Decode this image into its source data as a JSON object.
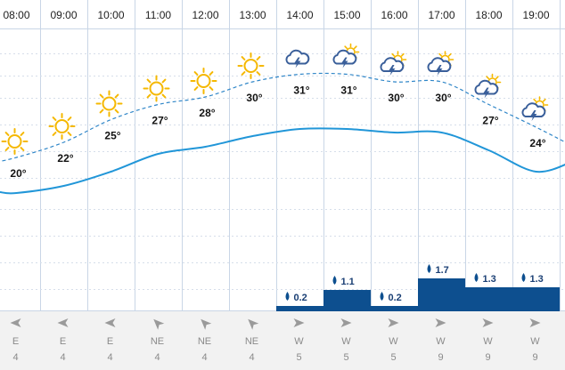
{
  "colors": {
    "grid": "#c9d6e6",
    "gridDash": "#d6deea",
    "curve": "#2196d8",
    "feels": "#2f86c8",
    "precip": "#0d4f8f",
    "sun": "#f5b800",
    "cloud": "#3a5f9a",
    "windArrow": "#9a9a9a",
    "windBand": "#f2f2f2"
  },
  "hours": [
    {
      "time": "08:00",
      "icon": "sun-icon",
      "temp": 20,
      "temp_label": "20°",
      "feels": 20,
      "precip": null,
      "precip_label": "",
      "wind_dir": "E",
      "wind_speed": "4"
    },
    {
      "time": "09:00",
      "icon": "sun-icon",
      "temp": 22,
      "temp_label": "22°",
      "feels": 22,
      "precip": null,
      "precip_label": "",
      "wind_dir": "E",
      "wind_speed": "4"
    },
    {
      "time": "10:00",
      "icon": "sun-icon",
      "temp": 25,
      "temp_label": "25°",
      "feels": 25,
      "precip": null,
      "precip_label": "",
      "wind_dir": "E",
      "wind_speed": "4"
    },
    {
      "time": "11:00",
      "icon": "sun-icon",
      "temp": 27,
      "temp_label": "27°",
      "feels": 27,
      "precip": null,
      "precip_label": "",
      "wind_dir": "NE",
      "wind_speed": "4"
    },
    {
      "time": "12:00",
      "icon": "sun-icon",
      "temp": 28,
      "temp_label": "28°",
      "feels": 28,
      "precip": null,
      "precip_label": "",
      "wind_dir": "NE",
      "wind_speed": "4"
    },
    {
      "time": "13:00",
      "icon": "sun-icon",
      "temp": 30,
      "temp_label": "30°",
      "feels": 30,
      "precip": null,
      "precip_label": "",
      "wind_dir": "NE",
      "wind_speed": "4"
    },
    {
      "time": "14:00",
      "icon": "thunderstorm-icon",
      "temp": 31,
      "temp_label": "31°",
      "feels": 31,
      "precip": 0.2,
      "precip_label": "0.2",
      "wind_dir": "W",
      "wind_speed": "5"
    },
    {
      "time": "15:00",
      "icon": "thunderstorm-sun-icon",
      "temp": 31,
      "temp_label": "31°",
      "feels": 31,
      "precip": 1.1,
      "precip_label": "1.1",
      "wind_dir": "W",
      "wind_speed": "5"
    },
    {
      "time": "16:00",
      "icon": "thunderstorm-sun-icon",
      "temp": 30,
      "temp_label": "30°",
      "feels": 30,
      "precip": 0.2,
      "precip_label": "0.2",
      "wind_dir": "W",
      "wind_speed": "5"
    },
    {
      "time": "17:00",
      "icon": "thunderstorm-sun-icon",
      "temp": 30,
      "temp_label": "30°",
      "feels": 30,
      "precip": 1.7,
      "precip_label": "1.7",
      "wind_dir": "W",
      "wind_speed": "9"
    },
    {
      "time": "18:00",
      "icon": "thunderstorm-sun-icon",
      "temp": 27,
      "temp_label": "27°",
      "feels": 27,
      "precip": 1.3,
      "precip_label": "1.3",
      "wind_dir": "W",
      "wind_speed": "9"
    },
    {
      "time": "19:00",
      "icon": "thunderstorm-sun-icon",
      "temp": 24,
      "temp_label": "24°",
      "feels": 24,
      "precip": 1.3,
      "precip_label": "1.3",
      "wind_dir": "W",
      "wind_speed": "9"
    }
  ],
  "curve": [
    17,
    18,
    20,
    22.5,
    23.5,
    25,
    26,
    26,
    25.5,
    25.5,
    23,
    20
  ]
}
